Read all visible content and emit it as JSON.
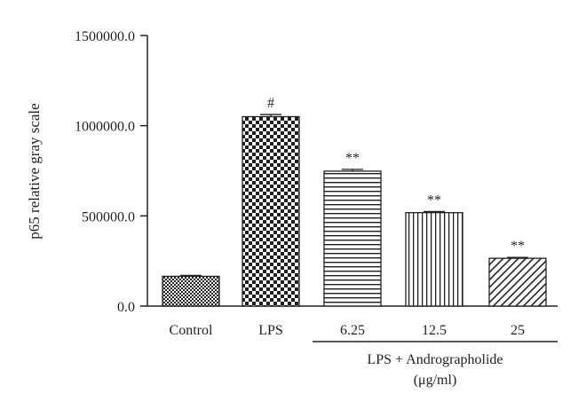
{
  "chart_data": {
    "type": "bar",
    "title": "",
    "xlabel": "",
    "ylabel": "p65 relative gray scale",
    "ylim": [
      0,
      1500000
    ],
    "yticks": [
      "0.0",
      "500000.0",
      "1000000.0",
      "1500000.0"
    ],
    "categories": [
      "Control",
      "LPS",
      "6.25",
      "12.5",
      "25"
    ],
    "values": [
      165000,
      1050000,
      748000,
      518000,
      265000
    ],
    "errors": [
      5000,
      12000,
      10000,
      6000,
      5000
    ],
    "annotations": [
      "",
      "#",
      "**",
      "**",
      "**"
    ],
    "patterns": [
      "small-check",
      "large-check",
      "horizontal-lines",
      "vertical-lines",
      "diagonal-lines"
    ],
    "group_label_line1": "LPS + Andrographolide",
    "group_label_line2": "(μg/ml)",
    "grid": false,
    "legend": "none",
    "colors": {
      "ink": "#231f20",
      "background": "#ffffff"
    }
  }
}
